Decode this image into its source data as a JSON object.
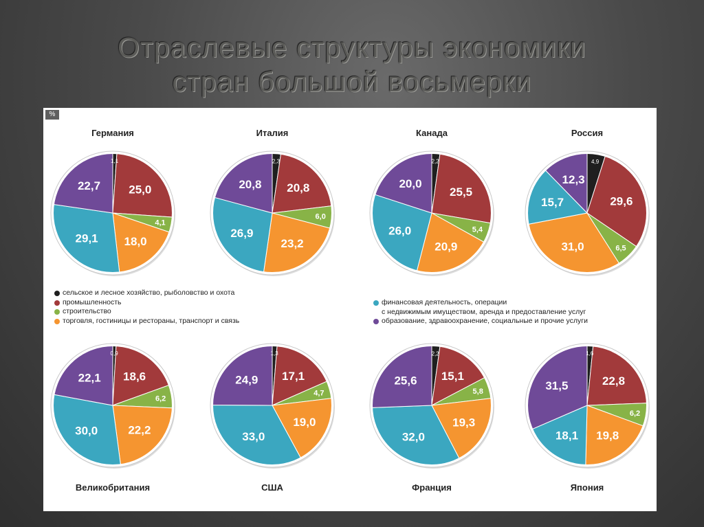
{
  "title_line1": "Отраслевые структуры экономики",
  "title_line2": "стран большой восьмерки",
  "pct_badge": "%",
  "colors": {
    "agri": "#1f1f1f",
    "industry": "#a23a3b",
    "construction": "#88b347",
    "trade": "#f59530",
    "finance": "#3ba7c0",
    "education": "#6f4a98"
  },
  "legend": {
    "agri": "сельское и лесное хозяйство, рыболовство и охота",
    "industry": "промышленность",
    "construction": "строительство",
    "trade": "торговля, гостиницы и рестораны, транспорт и связь",
    "finance_line1": "финансовая деятельность, операции",
    "finance_line2": "с недвижимым имуществом, аренда и предоставление услуг",
    "education": "образование, здравоохранение, социальные и прочие услуги"
  },
  "chart_data": [
    {
      "type": "pie",
      "title": "Германия",
      "categories": [
        "agri",
        "industry",
        "construction",
        "trade",
        "finance",
        "education"
      ],
      "values": [
        1.1,
        25.0,
        4.1,
        18.0,
        29.1,
        22.7
      ],
      "labels": [
        "1,1",
        "25,0",
        "4,1",
        "18,0",
        "29,1",
        "22,7"
      ]
    },
    {
      "type": "pie",
      "title": "Италия",
      "categories": [
        "agri",
        "industry",
        "construction",
        "trade",
        "finance",
        "education"
      ],
      "values": [
        2.3,
        20.8,
        6.0,
        23.2,
        26.9,
        20.8
      ],
      "labels": [
        "2,3",
        "20,8",
        "6,0",
        "23,2",
        "26,9",
        "20,8"
      ]
    },
    {
      "type": "pie",
      "title": "Канада",
      "categories": [
        "agri",
        "industry",
        "construction",
        "trade",
        "finance",
        "education"
      ],
      "values": [
        2.2,
        25.5,
        5.4,
        20.9,
        26.0,
        20.0
      ],
      "labels": [
        "2,2",
        "25,5",
        "5,4",
        "20,9",
        "26,0",
        "20,0"
      ]
    },
    {
      "type": "pie",
      "title": "Россия",
      "categories": [
        "agri",
        "industry",
        "construction",
        "trade",
        "finance",
        "education"
      ],
      "values": [
        4.9,
        29.6,
        6.5,
        31.0,
        15.7,
        12.3
      ],
      "labels": [
        "4,9",
        "29,6",
        "6,5",
        "31,0",
        "15,7",
        "12,3"
      ]
    },
    {
      "type": "pie",
      "title": "Великобритания",
      "categories": [
        "agri",
        "industry",
        "construction",
        "trade",
        "finance",
        "education"
      ],
      "values": [
        0.9,
        18.6,
        6.2,
        22.2,
        30.0,
        22.1
      ],
      "labels": [
        "0,9",
        "18,6",
        "6,2",
        "22,2",
        "30,0",
        "22,1"
      ]
    },
    {
      "type": "pie",
      "title": "США",
      "categories": [
        "agri",
        "industry",
        "construction",
        "trade",
        "finance",
        "education"
      ],
      "values": [
        1.3,
        17.1,
        4.7,
        19.0,
        33.0,
        24.9
      ],
      "labels": [
        "1,3",
        "17,1",
        "4,7",
        "19,0",
        "33,0",
        "24,9"
      ]
    },
    {
      "type": "pie",
      "title": "Франция",
      "categories": [
        "agri",
        "industry",
        "construction",
        "trade",
        "finance",
        "education"
      ],
      "values": [
        2.2,
        15.1,
        5.8,
        19.3,
        32.0,
        25.6
      ],
      "labels": [
        "2,2",
        "15,1",
        "5,8",
        "19,3",
        "32,0",
        "25,6"
      ]
    },
    {
      "type": "pie",
      "title": "Япония",
      "categories": [
        "agri",
        "industry",
        "construction",
        "trade",
        "finance",
        "education"
      ],
      "values": [
        1.6,
        22.8,
        6.2,
        19.8,
        18.1,
        31.5
      ],
      "labels": [
        "1,6",
        "22,8",
        "6,2",
        "19,8",
        "18,1",
        "31,5"
      ]
    }
  ]
}
